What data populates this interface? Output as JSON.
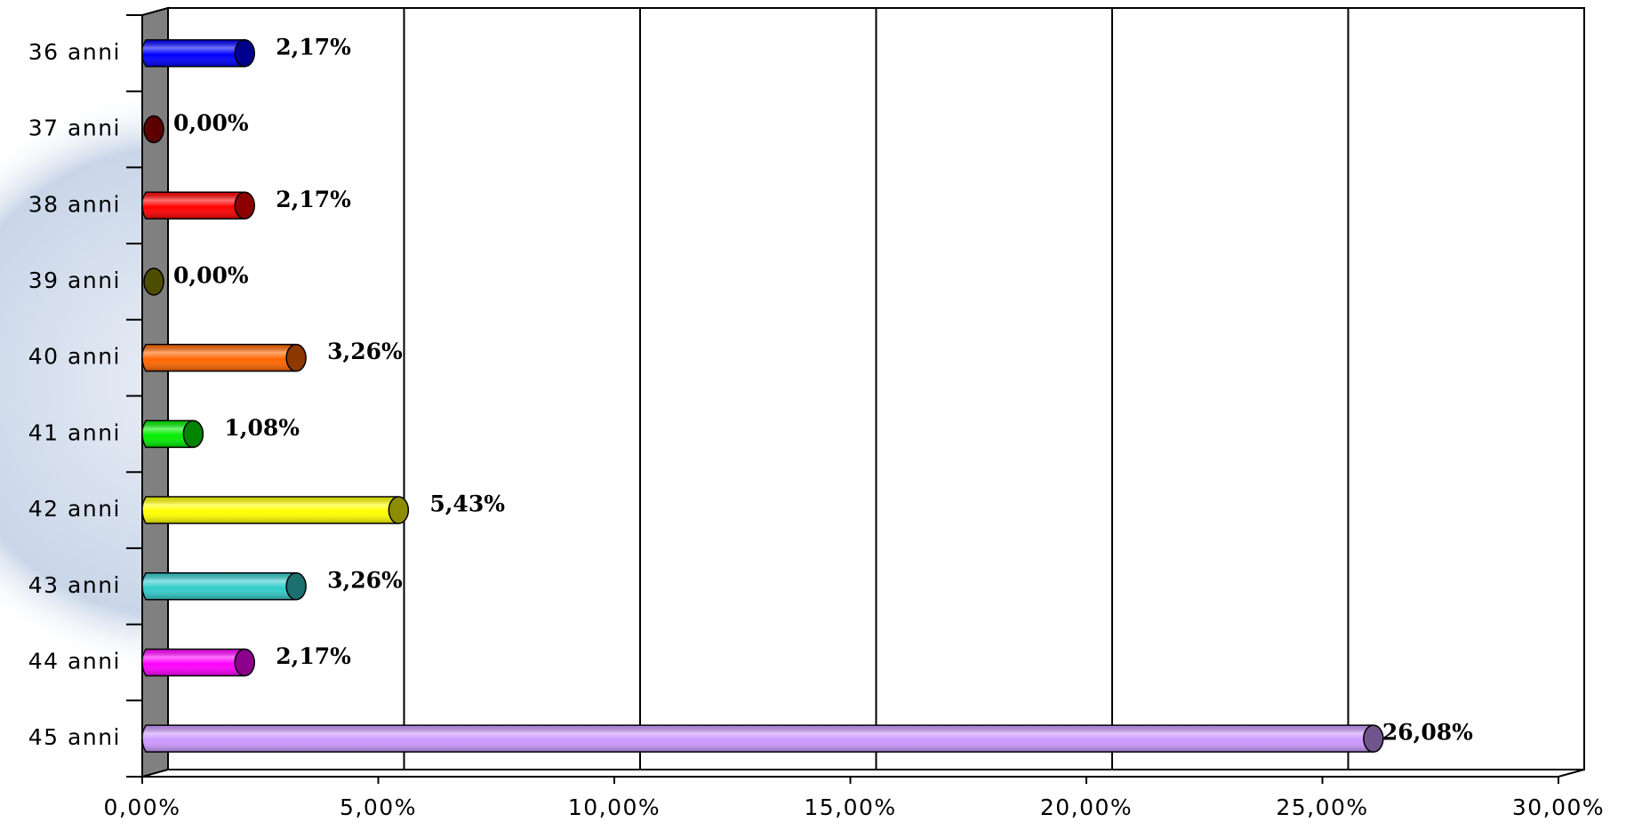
{
  "chart_data": {
    "type": "bar",
    "orientation": "horizontal",
    "categories": [
      "36 anni",
      "37 anni",
      "38 anni",
      "39 anni",
      "40 anni",
      "41 anni",
      "42 anni",
      "43 anni",
      "44 anni",
      "45 anni"
    ],
    "values": [
      2.17,
      0,
      2.17,
      0,
      3.26,
      1.08,
      5.43,
      3.26,
      2.17,
      26.08
    ],
    "value_labels": [
      "2,17%",
      "0,00%",
      "2,17%",
      "0,00%",
      "3,26%",
      "1,08%",
      "5,43%",
      "3,26%",
      "2,17%",
      "26,08%"
    ],
    "colors": [
      "#0000ff",
      "#990000",
      "#ff0000",
      "#808000",
      "#ff6600",
      "#00ee00",
      "#ffff00",
      "#33cccc",
      "#ff00ff",
      "#cc99ff"
    ],
    "xlim": [
      0,
      30
    ],
    "xticks": [
      {
        "value": 0,
        "label": "0,00%"
      },
      {
        "value": 5,
        "label": "5,00%"
      },
      {
        "value": 10,
        "label": "10,00%"
      },
      {
        "value": 15,
        "label": "15,00%"
      },
      {
        "value": 20,
        "label": "20,00%"
      },
      {
        "value": 25,
        "label": "25,00%"
      },
      {
        "value": 30,
        "label": "30,00%"
      }
    ],
    "grid": true
  }
}
